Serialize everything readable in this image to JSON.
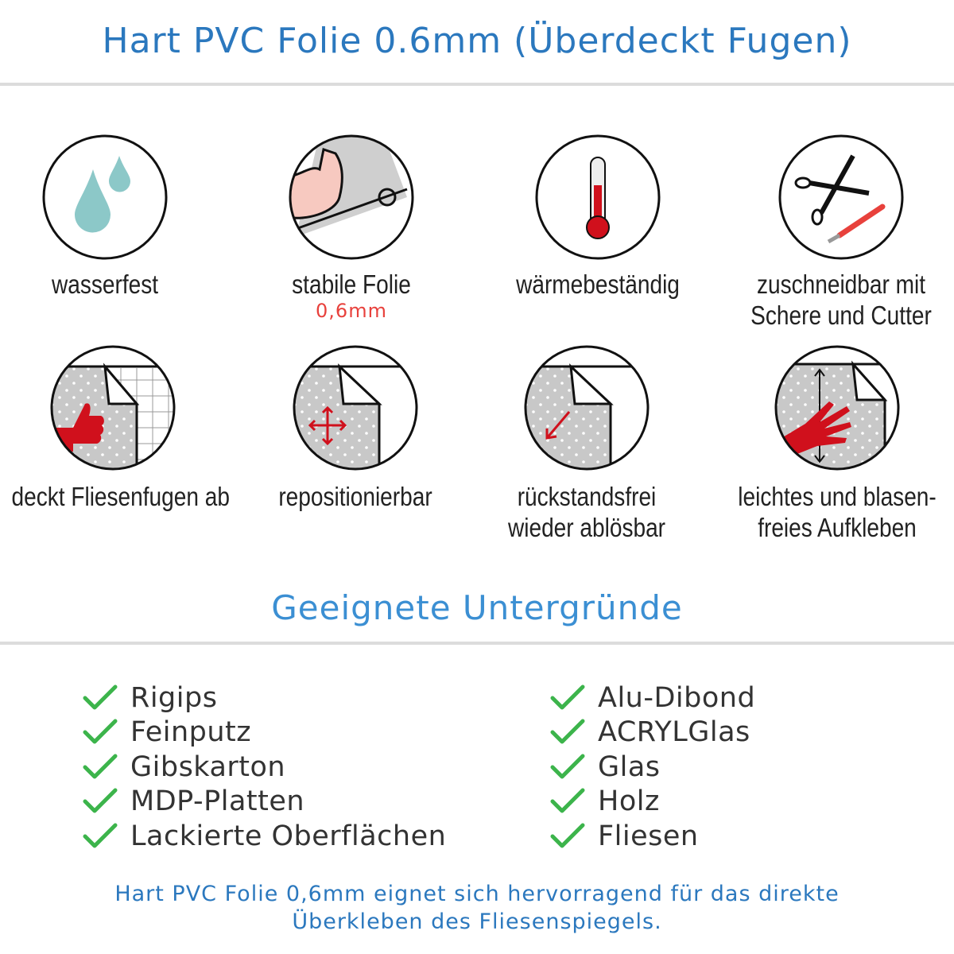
{
  "header": {
    "title": "Hart PVC Folie 0.6mm (Überdeckt Fugen)"
  },
  "features": [
    {
      "icon": "water-drops-icon",
      "lines": [
        "wasserfest"
      ]
    },
    {
      "icon": "strong-arm-foil-icon",
      "lines": [
        "stabile Folie"
      ],
      "sub": "0,6mm"
    },
    {
      "icon": "thermometer-icon",
      "lines": [
        "wärmebeständig"
      ]
    },
    {
      "icon": "scissors-cutter-icon",
      "lines": [
        "zuschneidbar mit",
        "Schere und Cutter"
      ]
    },
    {
      "icon": "thumbs-up-tiles-icon",
      "lines": [
        "deckt Fliesenfugen ab"
      ]
    },
    {
      "icon": "move-arrows-icon",
      "lines": [
        "repositionierbar"
      ]
    },
    {
      "icon": "peel-arrow-icon",
      "lines": [
        "rückstandsfrei",
        "wieder ablösbar"
      ]
    },
    {
      "icon": "hand-smoothing-icon",
      "lines": [
        "leichtes und blasen-",
        "freies Aufkleben"
      ]
    }
  ],
  "surfaces": {
    "title": "Geeignete Untergründe",
    "left": [
      "Rigips",
      "Feinputz",
      "Gibskarton",
      "MDP-Platten",
      "Lackierte Oberflächen"
    ],
    "right": [
      "Alu-Dibond",
      "ACRYLGlas",
      "Glas",
      "Holz",
      "Fliesen"
    ]
  },
  "footer": {
    "lines": [
      "Hart PVC Folie 0,6mm eignet sich hervorragend für das direkte",
      "Überkleben des Fliesenspiegels."
    ]
  },
  "colors": {
    "title": "#2b78be",
    "heading": "#3b8fd3",
    "check": "#3cb44b",
    "accent_red": "#d0101c",
    "drop": "#8cc8c8"
  }
}
